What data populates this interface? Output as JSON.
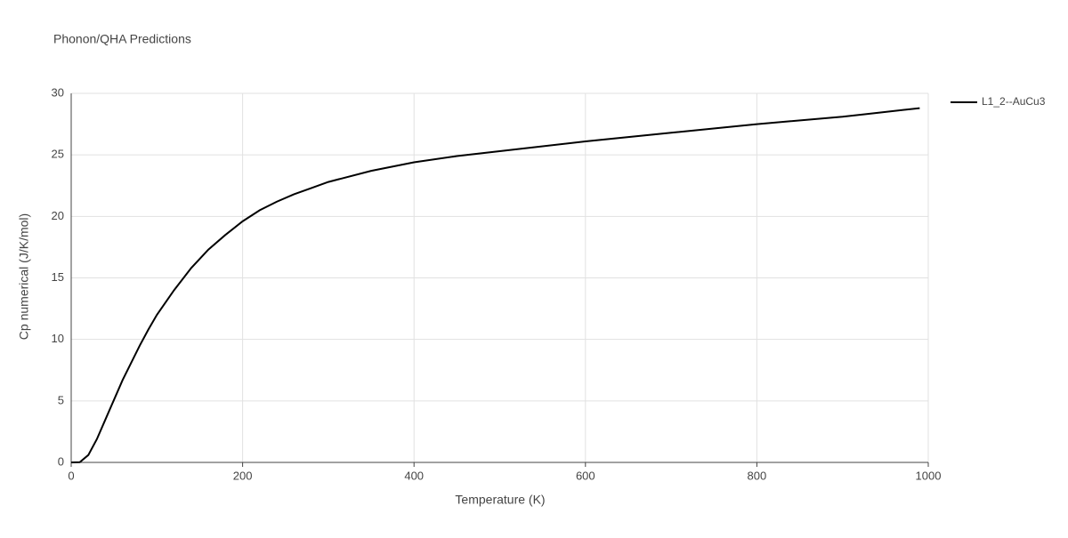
{
  "chart_data": {
    "type": "line",
    "title": "Phonon/QHA Predictions",
    "x_label": "Temperature (K)",
    "y_label": "Cp numerical (J/K/mol)",
    "x": [
      0,
      10,
      20,
      30,
      40,
      50,
      60,
      70,
      80,
      90,
      100,
      120,
      140,
      160,
      180,
      200,
      220,
      240,
      260,
      280,
      300,
      350,
      400,
      450,
      500,
      600,
      700,
      800,
      900,
      990
    ],
    "series": [
      {
        "name": "L1_2--AuCu3",
        "color": "#000000",
        "values": [
          0,
          0.02,
          0.6,
          1.9,
          3.5,
          5.1,
          6.7,
          8.1,
          9.5,
          10.8,
          12.0,
          14.0,
          15.8,
          17.3,
          18.5,
          19.6,
          20.5,
          21.2,
          21.8,
          22.3,
          22.8,
          23.7,
          24.4,
          24.9,
          25.3,
          26.1,
          26.8,
          27.5,
          28.1,
          28.8
        ]
      }
    ],
    "xlim": [
      0,
      1000
    ],
    "xticks": [
      0,
      200,
      400,
      600,
      800,
      1000
    ],
    "ylim": [
      0,
      30
    ],
    "yticks": [
      0,
      5,
      10,
      15,
      20,
      25,
      30
    ],
    "grid": true,
    "legend": "right"
  }
}
